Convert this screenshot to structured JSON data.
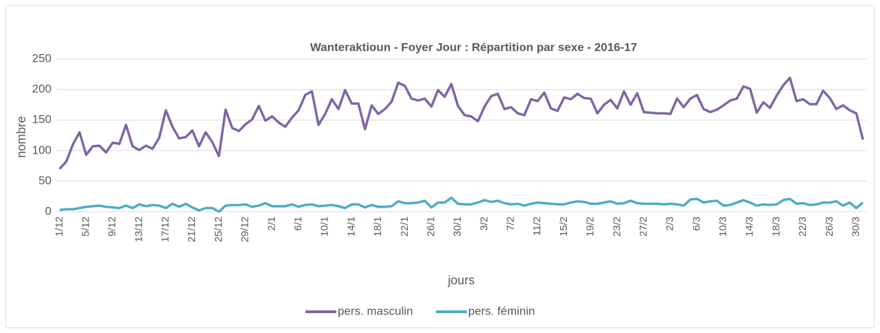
{
  "chart_data": {
    "type": "line",
    "title": "Wanteraktioun - Foyer Jour : Répartition par sexe - 2016-17",
    "x_label": "jours",
    "y_label": "nombre",
    "categories": [
      "1/12",
      null,
      null,
      null,
      "5/12",
      null,
      null,
      null,
      "9/12",
      null,
      null,
      null,
      "13/12",
      null,
      null,
      null,
      "17/12",
      null,
      null,
      null,
      "21/12",
      null,
      null,
      null,
      "25/12",
      null,
      null,
      null,
      "29/12",
      null,
      null,
      null,
      "2/1",
      null,
      null,
      null,
      "6/1",
      null,
      null,
      null,
      "10/1",
      null,
      null,
      null,
      "14/1",
      null,
      null,
      null,
      "18/1",
      null,
      null,
      null,
      "22/1",
      null,
      null,
      null,
      "26/1",
      null,
      null,
      null,
      "30/1",
      null,
      null,
      null,
      "3/2",
      null,
      null,
      null,
      "7/2",
      null,
      null,
      null,
      "11/2",
      null,
      null,
      null,
      "15/2",
      null,
      null,
      null,
      "19/2",
      null,
      null,
      null,
      "23/2",
      null,
      null,
      null,
      "27/2",
      null,
      null,
      null,
      "2/3",
      null,
      null,
      null,
      "6/3",
      null,
      null,
      null,
      "10/3",
      null,
      null,
      null,
      "14/3",
      null,
      null,
      null,
      "18/3",
      null,
      null,
      null,
      "22/3",
      null,
      null,
      null,
      "26/3",
      null,
      null,
      null,
      "30/3",
      null
    ],
    "series": [
      {
        "name": "pers. masculin",
        "color": "#7e65a6",
        "values": [
          70,
          82,
          110,
          130,
          93,
          107,
          108,
          97,
          113,
          111,
          142,
          107,
          101,
          108,
          103,
          121,
          166,
          139,
          120,
          122,
          133,
          107,
          130,
          114,
          91,
          167,
          137,
          132,
          143,
          151,
          173,
          149,
          156,
          146,
          139,
          154,
          166,
          191,
          197,
          142,
          160,
          184,
          168,
          199,
          177,
          177,
          135,
          174,
          160,
          168,
          180,
          211,
          206,
          185,
          182,
          185,
          172,
          199,
          188,
          209,
          173,
          158,
          156,
          148,
          172,
          189,
          193,
          168,
          171,
          161,
          158,
          184,
          181,
          195,
          169,
          165,
          187,
          184,
          193,
          186,
          185,
          161,
          175,
          183,
          169,
          197,
          175,
          194,
          163,
          162,
          161,
          161,
          160,
          185,
          171,
          185,
          191,
          168,
          163,
          167,
          174,
          182,
          185,
          205,
          201,
          162,
          179,
          170,
          190,
          207,
          219,
          181,
          184,
          176,
          176,
          198,
          186,
          168,
          174,
          166,
          161,
          118
        ]
      },
      {
        "name": "pers. féminin",
        "color": "#4bacc6",
        "values": [
          3,
          4,
          4,
          6,
          8,
          9,
          10,
          8,
          7,
          6,
          10,
          6,
          12,
          9,
          11,
          10,
          6,
          13,
          8,
          13,
          7,
          2,
          6,
          6,
          0,
          10,
          11,
          11,
          12,
          8,
          10,
          14,
          9,
          9,
          9,
          12,
          8,
          11,
          12,
          9,
          10,
          11,
          9,
          6,
          12,
          12,
          7,
          11,
          8,
          8,
          9,
          17,
          14,
          14,
          15,
          18,
          7,
          15,
          15,
          23,
          13,
          12,
          12,
          15,
          19,
          16,
          18,
          14,
          12,
          13,
          10,
          13,
          15,
          14,
          13,
          12,
          12,
          15,
          17,
          16,
          13,
          13,
          15,
          17,
          13,
          14,
          18,
          14,
          13,
          13,
          13,
          12,
          13,
          12,
          10,
          20,
          21,
          15,
          17,
          18,
          10,
          11,
          15,
          19,
          15,
          10,
          12,
          11,
          12,
          19,
          21,
          13,
          14,
          11,
          12,
          15,
          15,
          17,
          10,
          15,
          6,
          15
        ]
      }
    ],
    "ylim": [
      0,
      250
    ],
    "yticks": [
      0,
      50,
      100,
      150,
      200,
      250
    ],
    "grid": true,
    "legend": "bottom"
  }
}
